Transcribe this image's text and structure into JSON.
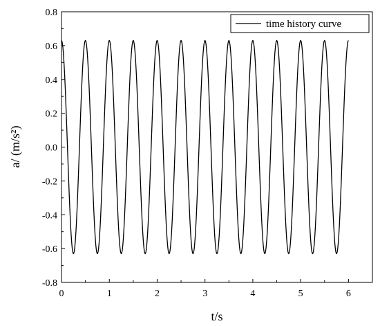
{
  "chart_data": {
    "type": "line",
    "title": "",
    "xlabel": "t/s",
    "ylabel": "a/ (m/s²)",
    "xlim": [
      0,
      6.5
    ],
    "ylim": [
      -0.8,
      0.8
    ],
    "xticks": [
      0,
      1,
      2,
      3,
      4,
      5,
      6
    ],
    "yticks": [
      -0.8,
      -0.6,
      -0.4,
      -0.2,
      0.0,
      0.2,
      0.4,
      0.6,
      0.8
    ],
    "xtick_labels": [
      "0",
      "1",
      "2",
      "3",
      "4",
      "5",
      "6"
    ],
    "ytick_labels": [
      "-0.8",
      "-0.6",
      "-0.4",
      "-0.2",
      "0.0",
      "0.2",
      "0.4",
      "0.6",
      "0.8"
    ],
    "grid": false,
    "legend_position": "top-right",
    "series": [
      {
        "name": "time history curve",
        "color": "#000000",
        "function": "a = 0.63·cos(2π·2·t)",
        "amplitude": 0.63,
        "frequency_hz": 2,
        "phase": 0,
        "t_range": [
          0,
          6
        ]
      }
    ]
  }
}
